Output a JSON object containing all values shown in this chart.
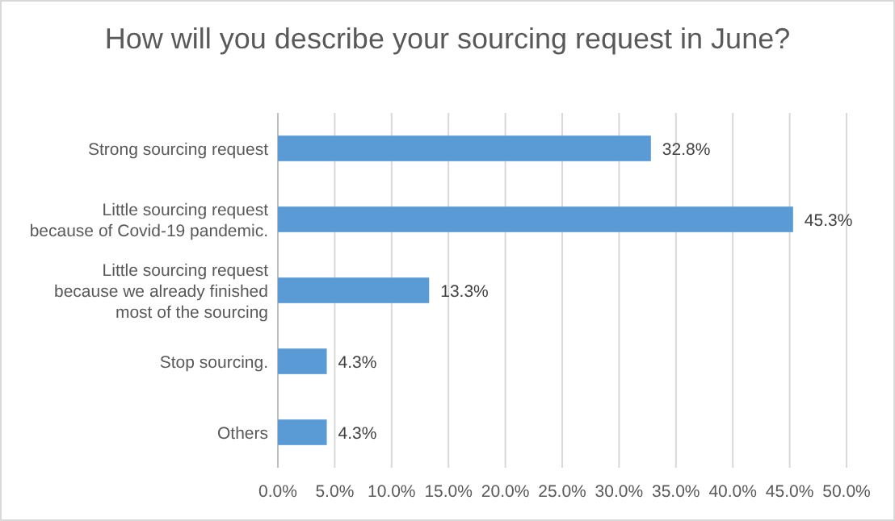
{
  "chart_data": {
    "type": "bar",
    "orientation": "horizontal",
    "title": "How will you describe your sourcing request in June?",
    "categories": [
      "Strong sourcing request",
      "Little sourcing request\nbecause of Covid-19 pandemic.",
      "Little sourcing request\nbecause we already finished\nmost of the sourcing",
      "Stop sourcing.",
      "Others"
    ],
    "values": [
      32.8,
      45.3,
      13.3,
      4.3,
      4.3
    ],
    "value_labels": [
      "32.8%",
      "45.3%",
      "13.3%",
      "4.3%",
      "4.3%"
    ],
    "color": "#5b9bd5",
    "xlim": [
      0,
      50
    ],
    "xticks": [
      {
        "value": 0,
        "label": "0.0%"
      },
      {
        "value": 5,
        "label": "5.0%"
      },
      {
        "value": 10,
        "label": "10.0%"
      },
      {
        "value": 15,
        "label": "15.0%"
      },
      {
        "value": 20,
        "label": "20.0%"
      },
      {
        "value": 25,
        "label": "25.0%"
      },
      {
        "value": 30,
        "label": "30.0%"
      },
      {
        "value": 35,
        "label": "35.0%"
      },
      {
        "value": 40,
        "label": "40.0%"
      },
      {
        "value": 45,
        "label": "45.0%"
      },
      {
        "value": 50,
        "label": "50.0%"
      }
    ],
    "grid": "x"
  }
}
